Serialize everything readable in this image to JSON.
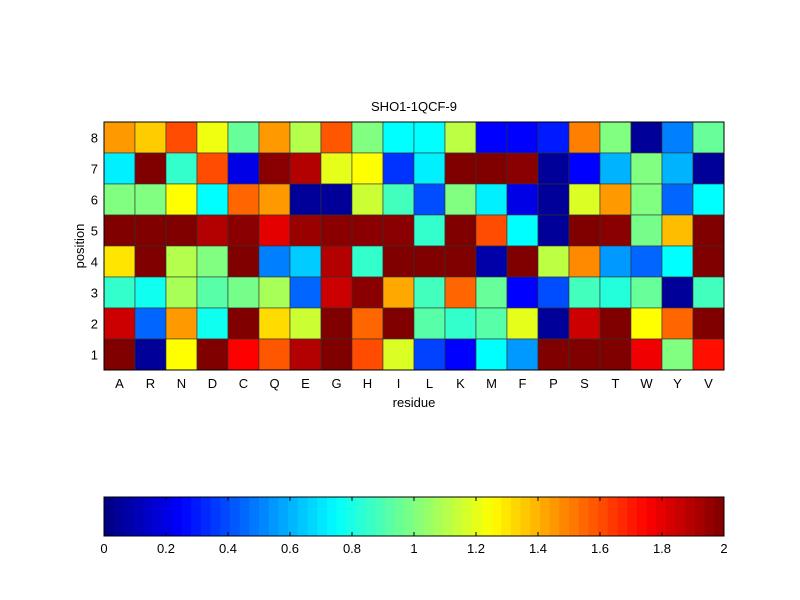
{
  "chart_data": {
    "type": "heatmap",
    "title": "SHO1-1QCF-9",
    "xlabel": "residue",
    "ylabel": "position",
    "x_categories": [
      "A",
      "R",
      "N",
      "D",
      "C",
      "Q",
      "E",
      "G",
      "H",
      "I",
      "L",
      "K",
      "M",
      "F",
      "P",
      "S",
      "T",
      "W",
      "Y",
      "V"
    ],
    "y_categories": [
      "8",
      "7",
      "6",
      "5",
      "4",
      "3",
      "2",
      "1"
    ],
    "values": [
      [
        1.45,
        1.35,
        1.6,
        1.22,
        0.95,
        1.45,
        1.1,
        1.58,
        1.0,
        0.75,
        0.75,
        1.12,
        0.25,
        0.25,
        0.3,
        1.5,
        1.0,
        0.05,
        0.5,
        0.95
      ],
      [
        0.72,
        2.0,
        0.85,
        1.6,
        0.2,
        1.98,
        1.9,
        1.2,
        1.25,
        0.35,
        0.72,
        2.0,
        2.0,
        1.98,
        0.05,
        0.25,
        0.6,
        1.0,
        0.6,
        0.05
      ],
      [
        1.0,
        1.0,
        1.25,
        0.75,
        1.55,
        1.45,
        0.05,
        0.05,
        1.15,
        0.88,
        0.4,
        1.0,
        0.72,
        0.2,
        0.05,
        1.18,
        1.45,
        1.0,
        0.45,
        0.75
      ],
      [
        2.0,
        2.0,
        2.0,
        1.9,
        1.98,
        1.8,
        1.95,
        1.98,
        1.98,
        1.98,
        0.85,
        2.0,
        1.6,
        0.75,
        0.05,
        2.0,
        1.98,
        0.98,
        1.38,
        2.0
      ],
      [
        1.3,
        2.0,
        1.1,
        1.0,
        2.0,
        0.5,
        0.65,
        1.9,
        0.85,
        2.0,
        2.0,
        2.0,
        0.08,
        2.0,
        1.12,
        1.48,
        0.55,
        0.45,
        0.75,
        2.0
      ],
      [
        0.85,
        0.78,
        1.08,
        0.92,
        0.98,
        1.08,
        0.45,
        1.85,
        1.98,
        1.42,
        0.88,
        1.55,
        0.95,
        0.25,
        0.4,
        0.88,
        0.82,
        0.95,
        0.05,
        0.88
      ],
      [
        1.85,
        0.45,
        1.45,
        0.78,
        2.0,
        1.32,
        1.15,
        2.0,
        1.55,
        2.0,
        0.92,
        0.85,
        0.92,
        1.2,
        0.05,
        1.85,
        2.0,
        1.25,
        1.55,
        2.0
      ],
      [
        2.0,
        0.05,
        1.25,
        2.0,
        1.75,
        1.58,
        1.9,
        2.0,
        1.6,
        1.18,
        0.38,
        0.25,
        0.75,
        0.55,
        2.0,
        2.0,
        2.0,
        1.78,
        1.0,
        1.72
      ]
    ],
    "colormap": "jet",
    "clim": [
      0,
      2
    ],
    "colorbar": {
      "location": "bottom",
      "ticks": [
        "0",
        "0.2",
        "0.4",
        "0.6",
        "0.8",
        "1",
        "1.2",
        "1.4",
        "1.6",
        "1.8",
        "2"
      ]
    },
    "grid": false
  }
}
